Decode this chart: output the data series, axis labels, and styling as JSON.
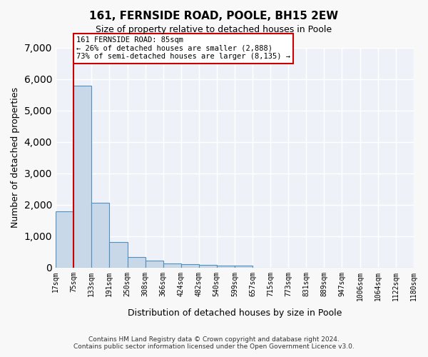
{
  "title_line1": "161, FERNSIDE ROAD, POOLE, BH15 2EW",
  "title_line2": "Size of property relative to detached houses in Poole",
  "xlabel": "Distribution of detached houses by size in Poole",
  "ylabel": "Number of detached properties",
  "annotation_line1": "161 FERNSIDE ROAD: 85sqm",
  "annotation_line2": "← 26% of detached houses are smaller (2,888)",
  "annotation_line3": "73% of semi-detached houses are larger (8,135) →",
  "property_size": 85,
  "property_bin_index": 1,
  "bin_edges": [
    17,
    75,
    133,
    191,
    250,
    308,
    366,
    424,
    482,
    540,
    599,
    657,
    715,
    773,
    831,
    889,
    947,
    1006,
    1064,
    1122,
    1180
  ],
  "bin_labels": [
    "17sqm",
    "75sqm",
    "133sqm",
    "191sqm",
    "250sqm",
    "308sqm",
    "366sqm",
    "424sqm",
    "482sqm",
    "540sqm",
    "599sqm",
    "657sqm",
    "715sqm",
    "773sqm",
    "831sqm",
    "889sqm",
    "947sqm",
    "1006sqm",
    "1064sqm",
    "1122sqm",
    "1180sqm"
  ],
  "bar_heights": [
    1800,
    5800,
    2060,
    820,
    340,
    220,
    135,
    110,
    85,
    70,
    60,
    0,
    0,
    0,
    0,
    0,
    0,
    0,
    0,
    0
  ],
  "bar_color": "#c8d8e8",
  "bar_edge_color": "#5090c0",
  "highlight_line_color": "#cc0000",
  "highlight_line_bin": 1,
  "ylim": [
    0,
    7000
  ],
  "yticks": [
    0,
    1000,
    2000,
    3000,
    4000,
    5000,
    6000,
    7000
  ],
  "background_color": "#eef2f8",
  "plot_background_color": "#eef2f8",
  "grid_color": "#ffffff",
  "annotation_box_color": "#ffffff",
  "annotation_box_edge_color": "#cc0000",
  "footer_line1": "Contains HM Land Registry data © Crown copyright and database right 2024.",
  "footer_line2": "Contains public sector information licensed under the Open Government Licence v3.0."
}
